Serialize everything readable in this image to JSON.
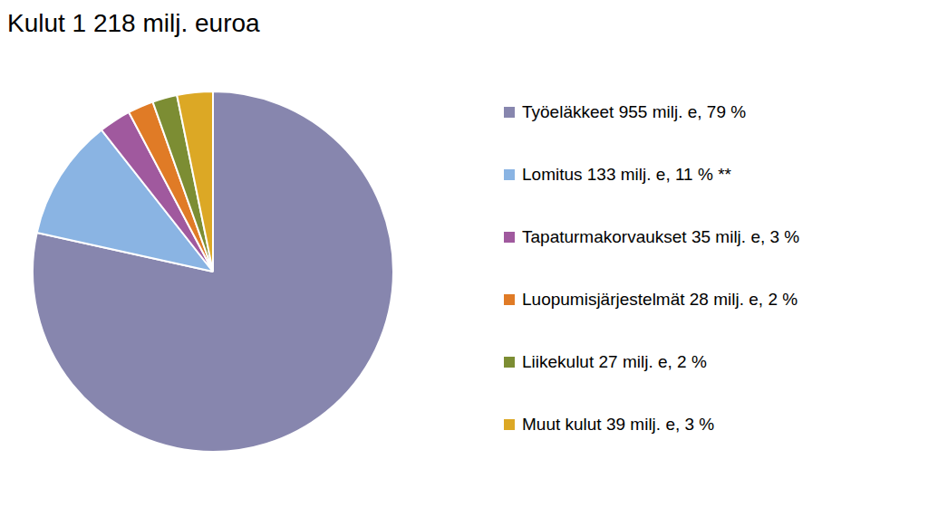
{
  "chart_data": {
    "type": "pie",
    "title": "Kulut 1 218 milj. euroa",
    "categories": [
      "Työeläkkeet 955 milj. e, 79 %",
      "Lomitus 133 milj. e, 11 % **",
      "Tapaturmakorvaukset 35 milj. e, 3 %",
      "Luopumisjärjestelmät 28 milj. e, 2 %",
      "Liikekulut 27 milj. e, 2 %",
      "Muut kulut 39 milj. e, 3 %"
    ],
    "values": [
      955,
      133,
      35,
      28,
      27,
      39
    ],
    "colors": [
      "#8786ae",
      "#8ab4e3",
      "#a0599e",
      "#e07b26",
      "#7c8d33",
      "#dca825"
    ],
    "legend": "right"
  }
}
